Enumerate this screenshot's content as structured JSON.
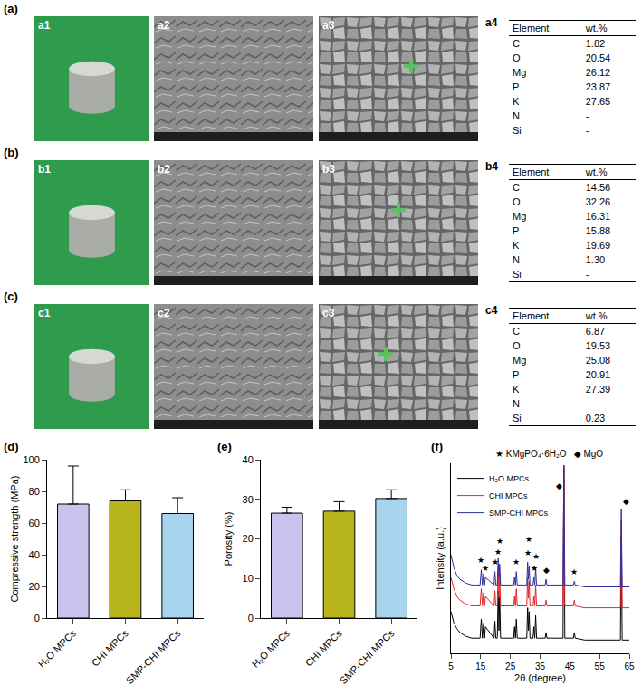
{
  "panels": [
    {
      "label": "(a)",
      "images": [
        "a1",
        "a2",
        "a3"
      ],
      "table": {
        "label": "a4",
        "header": [
          "Element",
          "wt.%"
        ],
        "rows": [
          [
            "C",
            "1.82"
          ],
          [
            "O",
            "20.54"
          ],
          [
            "Mg",
            "26.12"
          ],
          [
            "P",
            "23.87"
          ],
          [
            "K",
            "27.65"
          ],
          [
            "N",
            "-"
          ],
          [
            "Si",
            "-"
          ]
        ]
      }
    },
    {
      "label": "(b)",
      "images": [
        "b1",
        "b2",
        "b3"
      ],
      "table": {
        "label": "b4",
        "header": [
          "Element",
          "wt.%"
        ],
        "rows": [
          [
            "C",
            "14.56"
          ],
          [
            "O",
            "32.26"
          ],
          [
            "Mg",
            "16.31"
          ],
          [
            "P",
            "15.88"
          ],
          [
            "K",
            "19.69"
          ],
          [
            "N",
            "1.30"
          ],
          [
            "Si",
            "-"
          ]
        ]
      }
    },
    {
      "label": "(c)",
      "images": [
        "c1",
        "c2",
        "c3"
      ],
      "table": {
        "label": "c4",
        "header": [
          "Element",
          "wt.%"
        ],
        "rows": [
          [
            "C",
            "6.87"
          ],
          [
            "O",
            "19.53"
          ],
          [
            "Mg",
            "25.08"
          ],
          [
            "P",
            "20.91"
          ],
          [
            "K",
            "27.39"
          ],
          [
            "N",
            "-"
          ],
          [
            "Si",
            "0.23"
          ]
        ]
      }
    }
  ],
  "chart_data": [
    {
      "panel": "(d)",
      "type": "bar",
      "categories": [
        "H₂O MPCs",
        "CHI MPCs",
        "SMP-CHI MPCs"
      ],
      "values": [
        72,
        74,
        66
      ],
      "error": [
        24,
        7,
        10
      ],
      "colors": [
        "#c8c4ee",
        "#b8b41c",
        "#a8d4ee"
      ],
      "y_label": "Compressive strength (MPa)",
      "ylim": [
        0,
        100
      ],
      "yticks": [
        0,
        20,
        40,
        60,
        80,
        100
      ],
      "grid": false
    },
    {
      "panel": "(e)",
      "type": "bar",
      "categories": [
        "H₂O MPCs",
        "CHI MPCs",
        "SMP-CHI MPCs"
      ],
      "values": [
        26.5,
        27,
        30.2
      ],
      "error": [
        1.5,
        2.4,
        2.2
      ],
      "colors": [
        "#c8c4ee",
        "#b8b41c",
        "#a8d4ee"
      ],
      "y_label": "Porosity (%)",
      "ylim": [
        0,
        40
      ],
      "yticks": [
        0,
        10,
        20,
        30,
        40
      ],
      "grid": false
    },
    {
      "panel": "(f)",
      "type": "line",
      "x_label": "2θ (degree)",
      "y_label": "Intensity (a.u.)",
      "xlim": [
        5,
        65
      ],
      "xticks": [
        5,
        15,
        25,
        35,
        45,
        55,
        65
      ],
      "ylim": [
        0,
        100
      ],
      "tick_labels": "x",
      "legend": "top-left",
      "grid": false,
      "x": [
        5,
        6,
        7,
        8,
        10,
        12,
        14.8,
        15.2,
        15.6,
        16.0,
        16.3,
        16.6,
        19.5,
        19.8,
        20.1,
        20.6,
        20.9,
        21.15,
        21.4,
        21.7,
        26.1,
        26.4,
        26.7,
        27.0,
        27.3,
        30.5,
        30.8,
        31.05,
        31.3,
        31.6,
        32.6,
        32.9,
        33.2,
        33.5,
        33.8,
        36.7,
        37.0,
        37.3,
        42.7,
        43.0,
        43.3,
        46.2,
        46.5,
        46.8,
        50,
        55,
        60,
        62.0,
        62.3,
        62.6,
        65
      ],
      "series": [
        {
          "name": "H₂O MPCs",
          "color": "#000000",
          "values": [
            22,
            16,
            13,
            11,
            9,
            8,
            8,
            18,
            8,
            16,
            8,
            14,
            8,
            17,
            8,
            8,
            33,
            12,
            30,
            8,
            8,
            14,
            8,
            18,
            8,
            8,
            24,
            12,
            22,
            8,
            8,
            14,
            8,
            20,
            8,
            8,
            11,
            8,
            8,
            98,
            8,
            8,
            11,
            8,
            7,
            7,
            7,
            7,
            62,
            7,
            7
          ]
        },
        {
          "name": "CHI MPCs",
          "color": "#e3262b",
          "values": [
            40,
            34,
            30,
            28,
            26,
            25,
            25,
            34,
            25,
            32,
            25,
            30,
            25,
            33,
            25,
            25,
            45,
            29,
            42,
            25,
            25,
            30,
            25,
            34,
            25,
            25,
            40,
            29,
            38,
            25,
            25,
            30,
            25,
            36,
            25,
            25,
            28,
            25,
            25,
            99,
            25,
            25,
            28,
            25,
            24,
            24,
            24,
            24,
            70,
            24,
            24
          ]
        },
        {
          "name": "SMP-CHI MPCs",
          "color": "#2f2f9e",
          "values": [
            52,
            45,
            41,
            39,
            37,
            36,
            36,
            44,
            36,
            42,
            36,
            40,
            36,
            43,
            36,
            36,
            50,
            40,
            47,
            36,
            36,
            40,
            36,
            43,
            36,
            36,
            48,
            39,
            46,
            36,
            36,
            40,
            36,
            45,
            36,
            36,
            39,
            36,
            36,
            99,
            36,
            36,
            38,
            36,
            35,
            35,
            35,
            35,
            76,
            35,
            35
          ]
        }
      ],
      "annotations": [
        {
          "text": "★",
          "x": 15.2,
          "y": 49
        },
        {
          "text": "★",
          "x": 16.6,
          "y": 45
        },
        {
          "text": "★",
          "x": 19.8,
          "y": 48
        },
        {
          "text": "★",
          "x": 20.9,
          "y": 53.5
        },
        {
          "text": "★",
          "x": 21.4,
          "y": 59
        },
        {
          "text": "★",
          "x": 27.0,
          "y": 48
        },
        {
          "text": "★",
          "x": 30.8,
          "y": 53
        },
        {
          "text": "★",
          "x": 31.3,
          "y": 60
        },
        {
          "text": "★",
          "x": 32.9,
          "y": 45
        },
        {
          "text": "★",
          "x": 33.5,
          "y": 51
        },
        {
          "text": "★",
          "x": 46.5,
          "y": 43
        },
        {
          "text": "◆",
          "x": 37.0,
          "y": 44
        },
        {
          "text": "◆",
          "x": 41.3,
          "y": 88
        },
        {
          "text": "◆",
          "x": 64.0,
          "y": 80
        }
      ],
      "marker_key": [
        {
          "symbol": "★",
          "text": "KMgPO₄·6H₂O"
        },
        {
          "symbol": "◆",
          "text": "MgO"
        }
      ]
    }
  ]
}
